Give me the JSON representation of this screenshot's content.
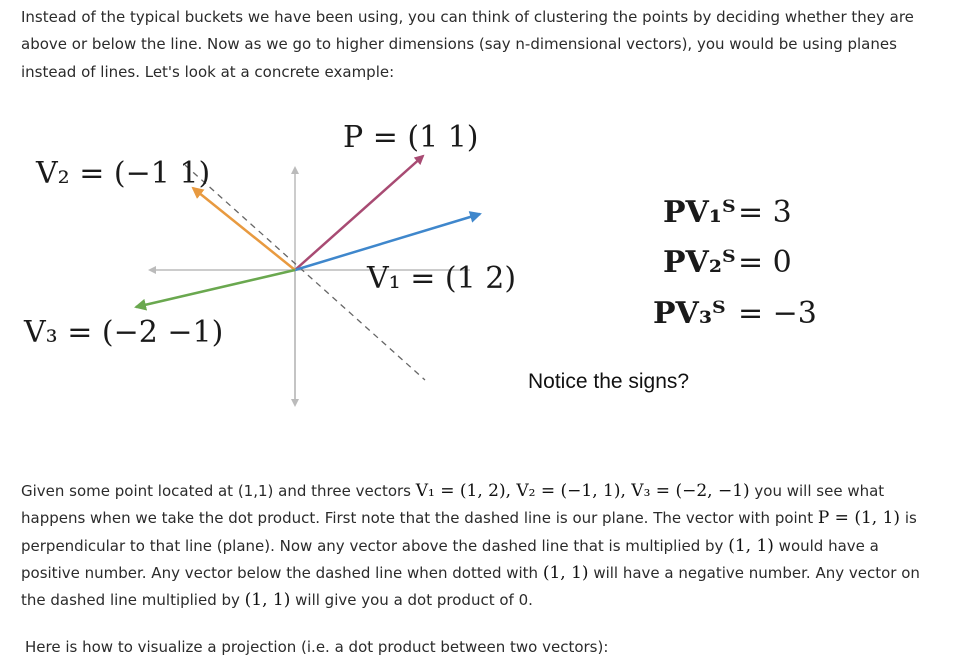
{
  "intro": {
    "text": "Instead of the typical buckets we have been using, you can think of clustering the points by deciding whether they are above or below the line. Now as we go to higher dimensions (say n-dimensional vectors), you would be using planes instead of lines. Let's look at a concrete example:"
  },
  "figure": {
    "p_label": "P = (1  1)",
    "v1_label": "V₁ = (1  2)",
    "v2_label": "V₂ = (−1  1)",
    "v3_label": "V₃ = (−2  −1)",
    "dot_products": [
      {
        "lhs": "PV₁ᵀ",
        "value": "= 3"
      },
      {
        "lhs": "PV₂ᵀ",
        "value": "= 0"
      },
      {
        "lhs": "PV₃ᵀ",
        "value": "= −3"
      }
    ],
    "notice": "Notice the signs?",
    "colors": {
      "p": "#a84b73",
      "v1": "#3f87cc",
      "v2": "#e89a40",
      "v3": "#6aa84f",
      "axes": "#bbbbbb",
      "plane": "#666666"
    }
  },
  "body": {
    "t1": "Given some point located at (1,1) and three vectors ",
    "m1": "V₁ = (1, 2), V₂ = (−1, 1), V₃ = (−2, −1)",
    "t2": " you will see what happens when we take the dot product. First note that the dashed line is our plane. The vector with point ",
    "m2": "P = (1, 1)",
    "t3": " is perpendicular to that line (plane). Now any vector above the dashed line that is multiplied by ",
    "m3": "(1, 1)",
    "t4": " would have a positive number. Any vector below the dashed line when dotted with ",
    "m4": "(1, 1)",
    "t5": " will have a negative number. Any vector on the dashed line multiplied by ",
    "m5": "(1, 1)",
    "t6": " will give you a dot product of 0."
  },
  "outro": {
    "text": "Here is how to visualize a projection (i.e. a dot product between two vectors):"
  }
}
